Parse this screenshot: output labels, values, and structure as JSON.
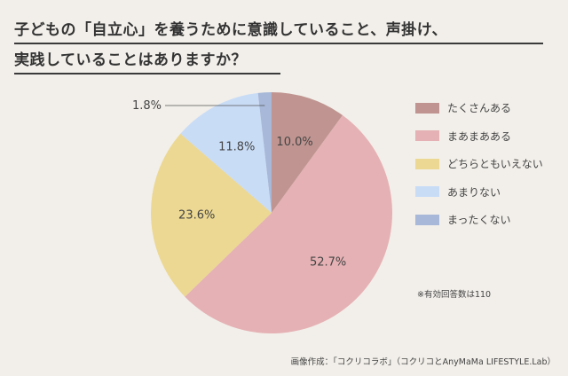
{
  "title": {
    "line1": "子どもの「自立心」を養うために意識していること、声掛け、",
    "line2": "実践していることはありますか？"
  },
  "chart_data": {
    "type": "pie",
    "categories": [
      "たくさんある",
      "まあまあある",
      "どちらともいえない",
      "あまりない",
      "まったくない"
    ],
    "values": [
      10.0,
      52.7,
      23.6,
      11.8,
      1.8
    ],
    "labels": [
      "10.0%",
      "52.7%",
      "23.6%",
      "11.8%",
      "1.8%"
    ],
    "colors": [
      "#c09591",
      "#e5b1b4",
      "#ecd892",
      "#c9dcf6",
      "#a7b8d8"
    ],
    "start": "12 o'clock",
    "direction": "clockwise",
    "legend_position": "right"
  },
  "note": "※有効回答数は110",
  "credit": "画像作成：「コクリコラボ」（コクリコとAnyMaMa LIFESTYLE.Lab）"
}
